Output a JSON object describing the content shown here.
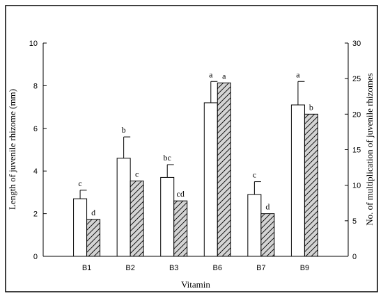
{
  "chart_data": {
    "type": "bar",
    "xlabel": "Vitamin",
    "ylabel_left": "Length of juvenile rhizome (mm)",
    "ylabel_right": "No. of multiplication of juvenile rhizomes",
    "ylim_left": [
      0,
      10
    ],
    "ylim_right": [
      0,
      30
    ],
    "yticks_left": [
      "0",
      "2",
      "4",
      "6",
      "8",
      "10"
    ],
    "yticks_right": [
      "0",
      "5",
      "10",
      "15",
      "20",
      "25",
      "30"
    ],
    "categories": [
      "B1",
      "B2",
      "B3",
      "B6",
      "B7",
      "B9"
    ],
    "series": [
      {
        "axis": "left",
        "fill": "white",
        "values": [
          2.7,
          4.6,
          3.7,
          7.2,
          2.9,
          7.1
        ],
        "error": [
          0.4,
          1.0,
          0.6,
          1.0,
          0.6,
          1.1
        ],
        "labels": [
          "c",
          "b",
          "bc",
          "a",
          "c",
          "a"
        ]
      },
      {
        "axis": "right",
        "fill": "hatched-gray",
        "values": [
          5.2,
          10.6,
          7.8,
          24.4,
          6.0,
          20.0
        ],
        "labels": [
          "d",
          "c",
          "cd",
          "a",
          "d",
          "b"
        ]
      }
    ],
    "grid": false,
    "legend": "none"
  },
  "colors": {
    "hatch_fill": "#d4d4d4",
    "stroke": "#000000",
    "frame": "#000000"
  }
}
